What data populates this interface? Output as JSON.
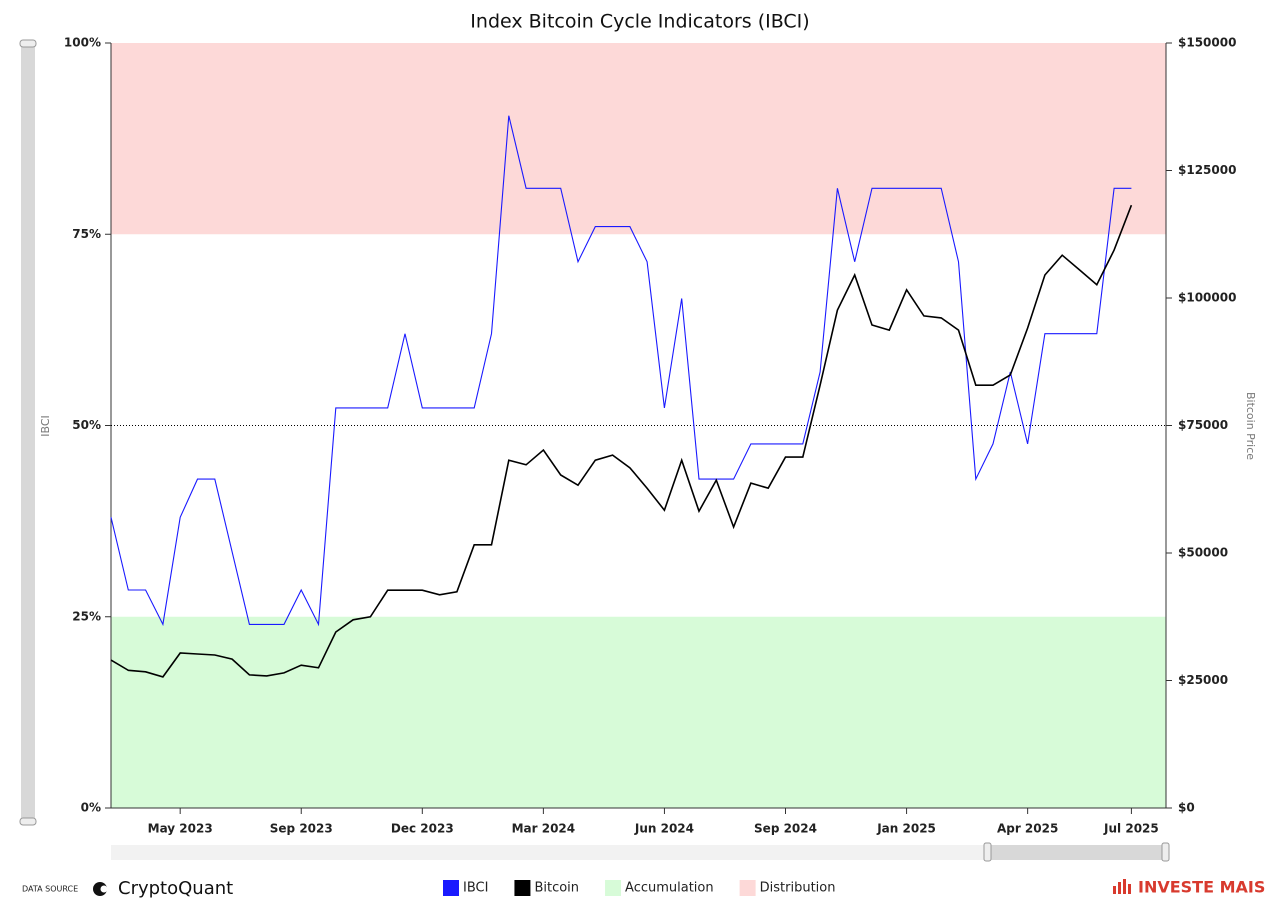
{
  "chart_data": {
    "type": "line",
    "title": "Index Bitcoin Cycle Indicators (IBCI)",
    "y_label": "IBCI",
    "y2_label": "Bitcoin Price",
    "categories": [
      null,
      null,
      null,
      null,
      "May 2023",
      null,
      null,
      null,
      null,
      null,
      null,
      "Sep 2023",
      null,
      null,
      null,
      null,
      null,
      null,
      "Dec 2023",
      null,
      null,
      null,
      null,
      null,
      null,
      "Mar 2024",
      null,
      null,
      null,
      null,
      null,
      null,
      "Jun 2024",
      null,
      null,
      null,
      null,
      null,
      null,
      "Sep 2024",
      null,
      null,
      null,
      null,
      null,
      null,
      "Jan 2025",
      null,
      null,
      null,
      null,
      null,
      null,
      "Apr 2025",
      null,
      null,
      null,
      null,
      null,
      "Jul 2025"
    ],
    "series": [
      {
        "name": "IBCI",
        "color": "#1a1aff",
        "axis": "y",
        "values": [
          38,
          28.5,
          28.5,
          24,
          38,
          43,
          43,
          33.5,
          24,
          24,
          24,
          28.5,
          24,
          52.3,
          52.3,
          52.3,
          52.3,
          62,
          52.3,
          52.3,
          52.3,
          52.3,
          62,
          90.5,
          81,
          81,
          81,
          71.4,
          76,
          76,
          76,
          71.4,
          52.3,
          66.6,
          43,
          43,
          43,
          47.6,
          47.6,
          47.6,
          47.6,
          57,
          81,
          71.4,
          81,
          81,
          81,
          81,
          81,
          71.4,
          43,
          47.6,
          57,
          47.6,
          62,
          62,
          62,
          62,
          81,
          81
        ]
      },
      {
        "name": "Bitcoin",
        "color": "#000000",
        "axis": "y2",
        "values": [
          29000,
          27000,
          26700,
          25700,
          30400,
          30200,
          30000,
          29200,
          26100,
          25900,
          26500,
          28000,
          27500,
          34500,
          36900,
          37500,
          42700,
          42700,
          42700,
          41800,
          42400,
          51600,
          51600,
          68200,
          67300,
          70200,
          65300,
          63300,
          68200,
          69200,
          66700,
          62700,
          58400,
          68200,
          58200,
          64300,
          55100,
          63700,
          62700,
          68800,
          68800,
          82900,
          97600,
          104500,
          94700,
          93700,
          101600,
          96500,
          96100,
          93700,
          82900,
          82900,
          84900,
          94100,
          104500,
          108400,
          105500,
          102600,
          109400,
          118200
        ]
      }
    ],
    "bands": [
      {
        "name": "Accumulation",
        "color": "#d7fbd8",
        "from": 0,
        "to": 25
      },
      {
        "name": "Distribution",
        "color": "#fdd9d8",
        "from": 75,
        "to": 100
      }
    ],
    "plot_line": 50,
    "ylim": [
      0,
      100
    ],
    "yticks": [
      {
        "value": 0,
        "label": "0%"
      },
      {
        "value": 25,
        "label": "25%"
      },
      {
        "value": 50,
        "label": "50%"
      },
      {
        "value": 75,
        "label": "75%"
      },
      {
        "value": 100,
        "label": "100%"
      }
    ],
    "y2lim": [
      0,
      150000
    ],
    "y2ticks": [
      {
        "value": 0,
        "label": "$0"
      },
      {
        "value": 25000,
        "label": "$25000"
      },
      {
        "value": 50000,
        "label": "$50000"
      },
      {
        "value": 75000,
        "label": "$75000"
      },
      {
        "value": 100000,
        "label": "$100000"
      },
      {
        "value": 125000,
        "label": "$125000"
      },
      {
        "value": 150000,
        "label": "$150000"
      }
    ],
    "data_source_label": "DATA SOURCE",
    "data_source": "CryptoQuant",
    "brand": "INVESTE MAIS"
  }
}
